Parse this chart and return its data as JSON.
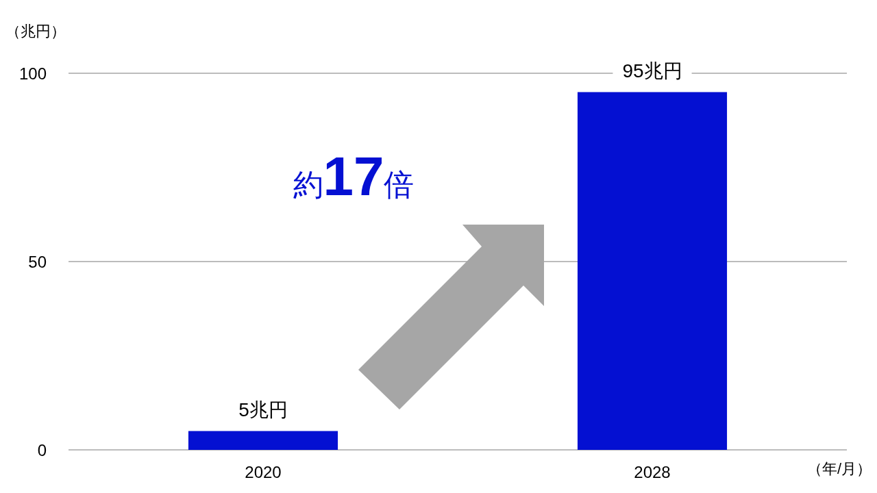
{
  "chart_data": {
    "type": "bar",
    "categories": [
      "2020",
      "2028"
    ],
    "values": [
      5,
      95
    ],
    "color": "#0410d2",
    "value_labels": [
      "5兆円",
      "95兆円"
    ],
    "ylabel": "（兆円）",
    "xlabel": "（年/月）",
    "ylim": [
      0,
      100
    ],
    "yticks": [
      0,
      50,
      100
    ],
    "grid": "y",
    "annotations": [
      "約17倍"
    ]
  }
}
